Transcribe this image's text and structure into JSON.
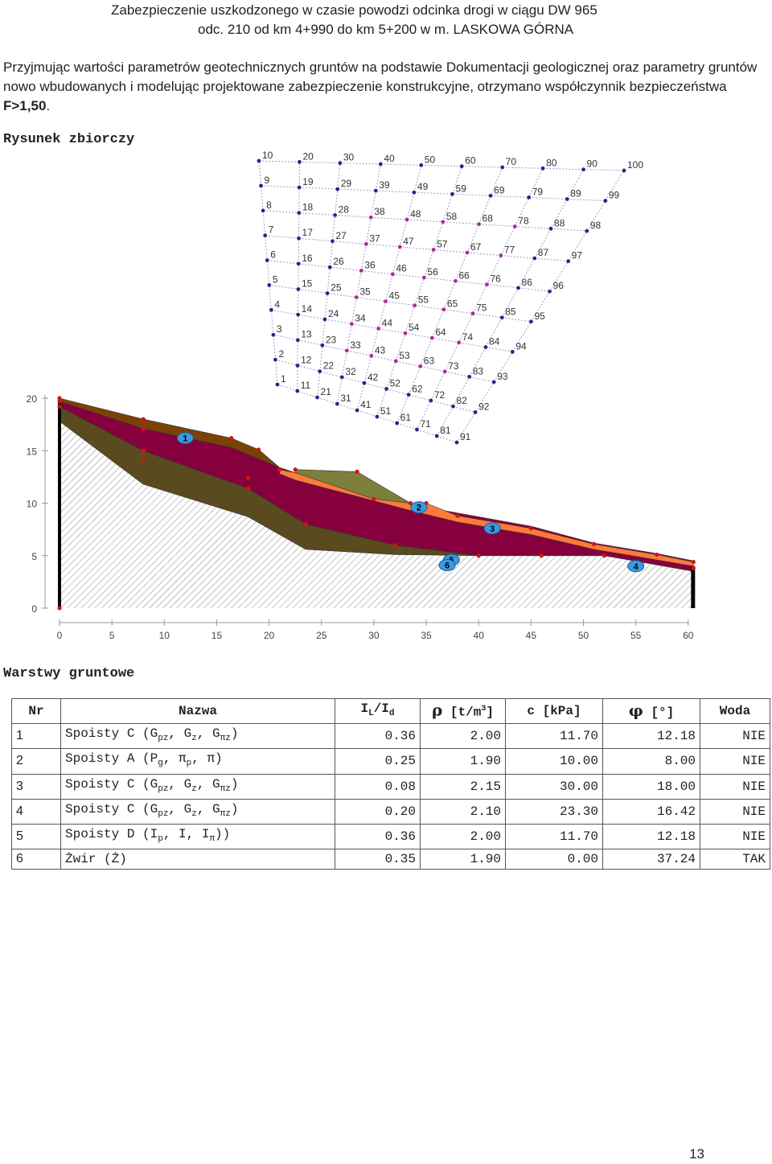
{
  "header": {
    "line1": "Zabezpieczenie uszkodzonego w czasie powodzi odcinka drogi  w ciągu DW 965",
    "line2": "odc. 210 od km 4+990 do km 5+200 w m. LASKOWA GÓRNA"
  },
  "intro": {
    "text": "Przyjmując wartości parametrów geotechnicznych gruntów na podstawie Dokumentacji geologicznej oraz parametry gruntów nowo wbudowanych i modelując projektowane zabezpieczenie konstrukcyjne, otrzymano współczynnik bezpieczeństwa",
    "factor": "F>1,50",
    "end": "."
  },
  "figure": {
    "title": "Rysunek zbiorczy",
    "x_ticks": [
      "0",
      "5",
      "10",
      "15",
      "20",
      "25",
      "30",
      "35",
      "40",
      "45",
      "50",
      "55",
      "60"
    ],
    "y_ticks": [
      "0",
      "5",
      "10",
      "15",
      "20"
    ],
    "layer_labels": [
      "1",
      "2",
      "3",
      "4",
      "5",
      "6"
    ],
    "colors": {
      "layer1": "#7a4207",
      "layer_main": "#86003e",
      "layer_orange": "#ff7a3a",
      "layer_olive": "#7e7f3c",
      "layer_dark_olive": "#5a4a20",
      "grid_point": "#1a2c8a",
      "grid_point_alt": "#b0289a",
      "label_blue": "#3a9adf"
    },
    "grid_labels": [
      [
        "1",
        "2",
        "3",
        "4",
        "5",
        "6",
        "7",
        "8",
        "9",
        "10"
      ],
      [
        "11",
        "12",
        "13",
        "14",
        "15",
        "16",
        "17",
        "18",
        "19",
        "20"
      ],
      [
        "21",
        "22",
        "23",
        "24",
        "25",
        "26",
        "27",
        "28",
        "29",
        "30"
      ],
      [
        "31",
        "32",
        "33",
        "34",
        "35",
        "36",
        "37",
        "38",
        "39",
        "40"
      ],
      [
        "41",
        "42",
        "43",
        "44",
        "45",
        "46",
        "47",
        "48",
        "49",
        "50"
      ],
      [
        "51",
        "52",
        "53",
        "54",
        "55",
        "56",
        "57",
        "58",
        "59",
        "60"
      ],
      [
        "61",
        "62",
        "63",
        "64",
        "65",
        "66",
        "67",
        "68",
        "69",
        "70"
      ],
      [
        "71",
        "72",
        "73",
        "74",
        "75",
        "76",
        "77",
        "78",
        "79",
        "80"
      ],
      [
        "81",
        "82",
        "83",
        "84",
        "85",
        "86",
        "87",
        "88",
        "89",
        "90"
      ],
      [
        "91",
        "92",
        "93",
        "94",
        "95",
        "96",
        "97",
        "98",
        "99",
        "100"
      ]
    ]
  },
  "layers_section": {
    "title": "Warstwy gruntowe",
    "columns": [
      "Nr",
      "Nazwa",
      "IL/Id",
      "ρ [t/m3]",
      "c [kPa]",
      "φ [°]",
      "Woda"
    ],
    "rows": [
      {
        "nr": "1",
        "name": "Spoisty C (Gpz, Gz, Gπz)",
        "il": "0.36",
        "rho": "2.00",
        "c": "11.70",
        "phi": "12.18",
        "water": "NIE"
      },
      {
        "nr": "2",
        "name": "Spoisty A (Pg, πp, π)",
        "il": "0.25",
        "rho": "1.90",
        "c": "10.00",
        "phi": "8.00",
        "water": "NIE"
      },
      {
        "nr": "3",
        "name": "Spoisty C (Gpz, Gz, Gπz)",
        "il": "0.08",
        "rho": "2.15",
        "c": "30.00",
        "phi": "18.00",
        "water": "NIE"
      },
      {
        "nr": "4",
        "name": "Spoisty C (Gpz, Gz, Gπz)",
        "il": "0.20",
        "rho": "2.10",
        "c": "23.30",
        "phi": "16.42",
        "water": "NIE"
      },
      {
        "nr": "5",
        "name": "Spoisty D (Ip, I, Iπ))",
        "il": "0.36",
        "rho": "2.00",
        "c": "11.70",
        "phi": "12.18",
        "water": "NIE"
      },
      {
        "nr": "6",
        "name": "Żwir (Ż)",
        "il": "0.35",
        "rho": "1.90",
        "c": "0.00",
        "phi": "37.24",
        "water": "TAK"
      }
    ]
  },
  "page_number": "13"
}
